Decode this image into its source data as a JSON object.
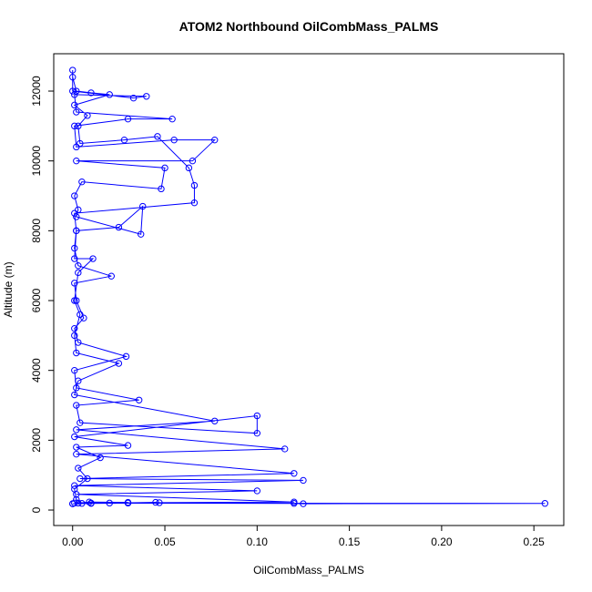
{
  "chart_data": {
    "type": "line",
    "title": "ATOM2 Northbound OilCombMass_PALMS",
    "x_label": "OilCombMass_PALMS",
    "y_label": "Altitude (m)",
    "xlim": [
      -0.01024,
      0.2662
    ],
    "ylim": [
      -443,
      13070
    ],
    "xticks": [
      {
        "value": 0,
        "label": "0.00"
      },
      0.05,
      {
        "value": 0.1,
        "label": "0.10"
      },
      0.15,
      {
        "value": 0.2,
        "label": "0.20"
      },
      0.25
    ],
    "yticks": [
      0,
      2000,
      4000,
      6000,
      8000,
      10000,
      12000
    ],
    "series": [
      {
        "color": "#0000ff",
        "x": [
          0,
          0.01,
          0.03,
          0.047,
          0.045,
          0.02,
          0.005,
          0.002,
          0.001,
          0.008,
          0.003,
          0.015,
          0.002,
          0.03,
          0.001,
          0.1,
          0.1,
          0.004,
          0.002,
          0.036,
          0.002,
          0.001,
          0.029,
          0.003,
          0.001,
          0.006,
          0.002,
          0.001,
          0.021,
          0.003,
          0.001,
          0.002,
          0.025,
          0.038,
          0.037,
          0.002,
          0.003,
          0.001,
          0.005,
          0.048,
          0.05,
          0.002,
          0.065,
          0.077,
          0.055,
          0.002,
          0.001,
          0.03,
          0.054,
          0.002,
          0.001,
          0.04,
          0.033,
          0,
          0,
          0,
          0.002,
          0.01,
          0.02,
          0.001,
          0.008,
          0.003,
          0.004,
          0.028,
          0.046,
          0.063,
          0.066,
          0.066,
          0.001,
          0.002,
          0.001,
          0.011,
          0.003,
          0.001,
          0.004,
          0.001,
          0.002,
          0.025,
          0.003,
          0.001,
          0.077,
          0.002,
          0.115,
          0.002,
          0.12,
          0.004,
          0.125,
          0.001,
          0.1,
          0.002,
          0.12,
          0.001,
          0.256,
          0.125,
          0.12,
          0.003,
          0.009,
          0.03,
          0.01,
          0
        ],
        "values": [
          180,
          190,
          200,
          210,
          220,
          200,
          190,
          300,
          600,
          900,
          1200,
          1500,
          1800,
          1850,
          2100,
          2700,
          2200,
          2500,
          3000,
          3150,
          3500,
          4000,
          4400,
          4800,
          5200,
          5500,
          6000,
          6500,
          6700,
          7000,
          7500,
          8000,
          8100,
          8700,
          7900,
          8400,
          8600,
          9000,
          9400,
          9200,
          9800,
          10000,
          10000,
          10600,
          10600,
          10400,
          11000,
          11200,
          11200,
          11400,
          11900,
          11850,
          11800,
          12000,
          12600,
          12400,
          12000,
          11950,
          11900,
          11600,
          11300,
          11000,
          10500,
          10600,
          10700,
          9800,
          9300,
          8800,
          8500,
          8000,
          7200,
          7200,
          6800,
          6000,
          5600,
          5000,
          4500,
          4200,
          3700,
          3300,
          2550,
          2300,
          1750,
          1600,
          1050,
          900,
          850,
          700,
          550,
          450,
          230,
          200,
          190,
          180,
          190,
          200,
          230,
          220,
          200,
          180
        ]
      }
    ]
  }
}
